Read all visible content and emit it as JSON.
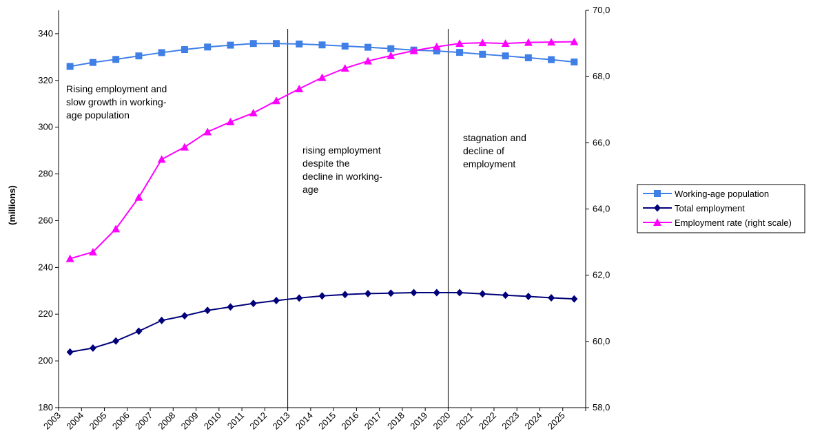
{
  "chart_data": {
    "type": "line",
    "title": "",
    "xlabel": "",
    "ylabel": "(millions)",
    "ylim": [
      180,
      350
    ],
    "y2lim": [
      58.0,
      70.0
    ],
    "yticks": [
      "180",
      "200",
      "220",
      "240",
      "260",
      "280",
      "300",
      "320",
      "340"
    ],
    "y2ticks": [
      "58,0",
      "60,0",
      "62,0",
      "64,0",
      "66,0",
      "68,0",
      "70,0"
    ],
    "grid": false,
    "legend_position": "right",
    "categories": [
      "2003",
      "2004",
      "2005",
      "2006",
      "2007",
      "2008",
      "2009",
      "2010",
      "2011",
      "2012",
      "2013",
      "2014",
      "2015",
      "2016",
      "2017",
      "2018",
      "2019",
      "2020",
      "2021",
      "2022",
      "2023",
      "2024",
      "2025"
    ],
    "series": [
      {
        "name": "Working-age population",
        "axis": "left",
        "color": "#3f7fe6",
        "marker": "square",
        "values": [
          326.0,
          327.7,
          329.0,
          330.5,
          331.9,
          333.2,
          334.3,
          335.1,
          335.8,
          335.8,
          335.6,
          335.2,
          334.7,
          334.2,
          333.6,
          333.0,
          332.6,
          332.0,
          331.2,
          330.5,
          329.7,
          328.9,
          327.9
        ]
      },
      {
        "name": "Total employment",
        "axis": "left",
        "color": "#00007a",
        "marker": "diamond",
        "values": [
          203.8,
          205.5,
          208.5,
          212.7,
          217.3,
          219.3,
          221.6,
          223.1,
          224.6,
          225.8,
          226.9,
          227.8,
          228.4,
          228.8,
          229.0,
          229.2,
          229.2,
          229.2,
          228.7,
          228.1,
          227.6,
          227.0,
          226.5
        ]
      },
      {
        "name": "Employment rate (right scale)",
        "axis": "right",
        "color": "#ff00ff",
        "marker": "triangle",
        "values": [
          62.5,
          62.7,
          63.4,
          64.35,
          65.5,
          65.87,
          66.33,
          66.63,
          66.9,
          67.27,
          67.63,
          67.97,
          68.25,
          68.47,
          68.63,
          68.78,
          68.9,
          69.0,
          69.02,
          69.0,
          69.03,
          69.04,
          69.05
        ]
      }
    ],
    "dividers_after": [
      "2012",
      "2019"
    ],
    "annotations": [
      {
        "lines": [
          "Rising employment and",
          "slow growth in working-",
          "age population"
        ]
      },
      {
        "lines": [
          "rising employment",
          "despite the",
          "decline in working-",
          "age"
        ]
      },
      {
        "lines": [
          "stagnation and",
          "decline of",
          "employment"
        ]
      }
    ]
  }
}
